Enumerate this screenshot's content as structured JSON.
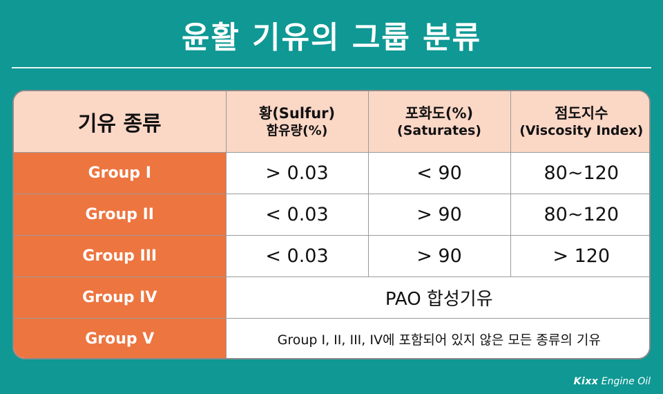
{
  "title": "윤활 기유의 그룹 분류",
  "table": {
    "headers": [
      {
        "line1": "기유 종류",
        "line2": ""
      },
      {
        "line1": "황(Sulfur)",
        "line2": "함유량(%)"
      },
      {
        "line1": "포화도(%)",
        "line2": "(Saturates)"
      },
      {
        "line1": "점도지수",
        "line2": "(Viscosity Index)"
      }
    ],
    "rows": [
      {
        "group": "Group I",
        "sulfur": "> 0.03",
        "saturates": "< 90",
        "vi": "80~120"
      },
      {
        "group": "Group II",
        "sulfur": "< 0.03",
        "saturates": "> 90",
        "vi": "80~120"
      },
      {
        "group": "Group III",
        "sulfur": "< 0.03",
        "saturates": "> 90",
        "vi": "> 120"
      },
      {
        "group": "Group IV",
        "merged": "PAO 합성기유"
      },
      {
        "group": "Group V",
        "merged": "Group I, II, III, IV에 포함되어 있지 않은 모든 종류의 기유"
      }
    ]
  },
  "logo": {
    "brand": "Kixx",
    "suffix": "Engine Oil"
  }
}
